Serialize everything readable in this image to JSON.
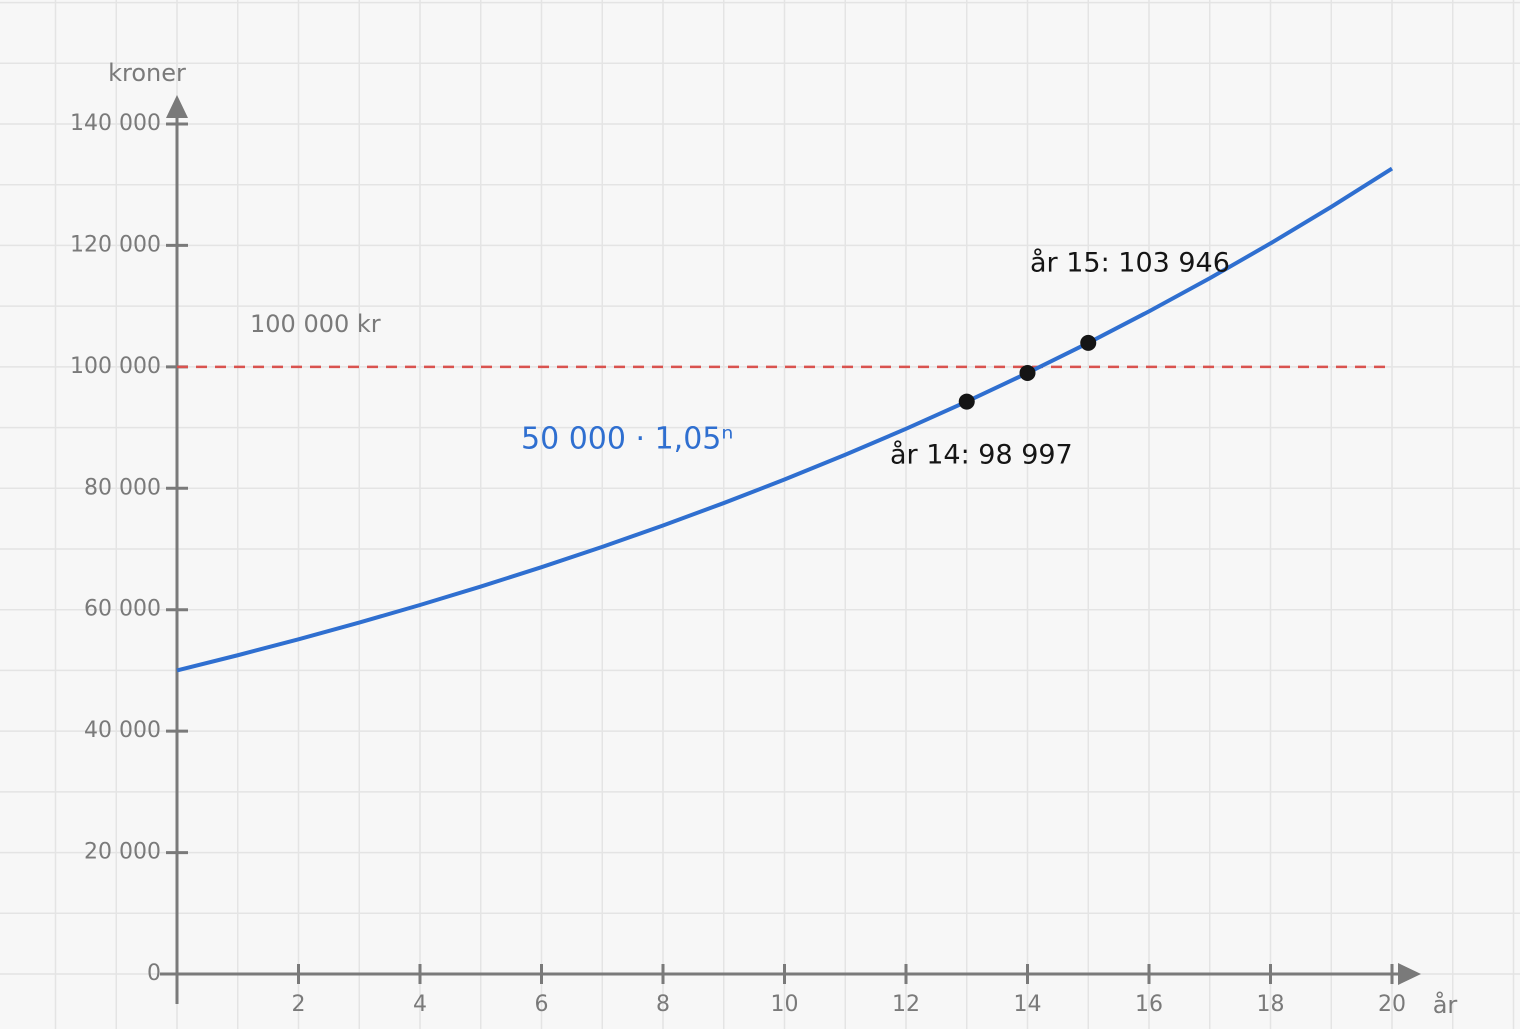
{
  "chart_data": {
    "type": "line",
    "y_label": "kroner",
    "x_label": "år",
    "formula": "50 000 · 1,05ⁿ",
    "xlim": [
      0,
      20
    ],
    "xticks": [
      2,
      4,
      6,
      8,
      10,
      12,
      14,
      16,
      18,
      20
    ],
    "ylim": [
      0,
      140000
    ],
    "yticks": [
      0,
      {
        "value": 20000,
        "label": "20 000"
      },
      {
        "value": 40000,
        "label": "40 000"
      },
      {
        "value": 60000,
        "label": "60 000"
      },
      {
        "value": 80000,
        "label": "80 000"
      },
      {
        "value": 100000,
        "label": "100 000"
      },
      {
        "value": 120000,
        "label": "120 000"
      },
      {
        "value": 140000,
        "label": "140 000"
      }
    ],
    "grid": true,
    "series": [
      {
        "color": "#2f6fd0",
        "x": [
          0,
          1,
          2,
          3,
          4,
          5,
          6,
          7,
          8,
          9,
          10,
          11,
          12,
          13,
          14,
          15,
          16,
          17,
          18,
          19,
          20
        ],
        "values": [
          50000,
          52500,
          55125,
          57881,
          60775,
          63814,
          67005,
          70355,
          73873,
          77566,
          81445,
          85517,
          89793,
          94282,
          98997,
          103946,
          109144,
          114601,
          120331,
          126348,
          132665
        ]
      }
    ],
    "points": {
      "color": "#151515",
      "x": [
        13,
        14,
        15
      ],
      "values": [
        94282,
        98997,
        103946
      ]
    },
    "threshold": {
      "value": 100000,
      "label": "100 000 kr",
      "color": "#d9534f"
    },
    "annotations": [
      "år 14: 98 997",
      "år 15: 103 946"
    ]
  }
}
